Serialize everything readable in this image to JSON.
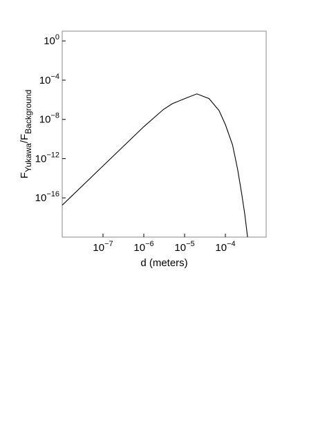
{
  "chart_data": {
    "type": "line",
    "x_label": "d (meters)",
    "y_label": {
      "parts": [
        {
          "text": "F"
        },
        {
          "text": "Yukawa",
          "sub": true
        },
        {
          "text": "/F"
        },
        {
          "text": "Background",
          "sub": true
        }
      ]
    },
    "x": [
      1e-08,
      1e-07,
      1e-06,
      3e-06,
      5e-06,
      1e-05,
      2e-05,
      4e-05,
      7e-05,
      0.0001,
      0.00015,
      0.0002,
      0.00025,
      0.0003,
      0.00035
    ],
    "series": [
      {
        "color": "#000000",
        "values": [
          1.8e-17,
          1.8e-13,
          1.8e-09,
          1e-07,
          4e-07,
          1.3e-06,
          4e-06,
          1.3e-06,
          8e-08,
          3e-09,
          2.5e-11,
          8e-14,
          3e-16,
          2e-18,
          1e-20
        ]
      }
    ],
    "xscale": "log",
    "yscale": "log",
    "xlim": [
      1e-08,
      0.001
    ],
    "ylim": [
      1e-20,
      10
    ],
    "xticks": [
      {
        "value": 1e-07,
        "label": "10",
        "exponent": "−7"
      },
      {
        "value": 1e-06,
        "label": "10",
        "exponent": "−6"
      },
      {
        "value": 1e-05,
        "label": "10",
        "exponent": "−5"
      },
      {
        "value": 0.0001,
        "label": "10",
        "exponent": "−4"
      }
    ],
    "yticks": [
      {
        "value": 1,
        "label": "10",
        "exponent": "0"
      },
      {
        "value": 0.0001,
        "label": "10",
        "exponent": "−4"
      },
      {
        "value": 1e-08,
        "label": "10",
        "exponent": "−8"
      },
      {
        "value": 1e-12,
        "label": "10",
        "exponent": "−12"
      },
      {
        "value": 1e-16,
        "label": "10",
        "exponent": "−16"
      }
    ],
    "grid": false
  }
}
